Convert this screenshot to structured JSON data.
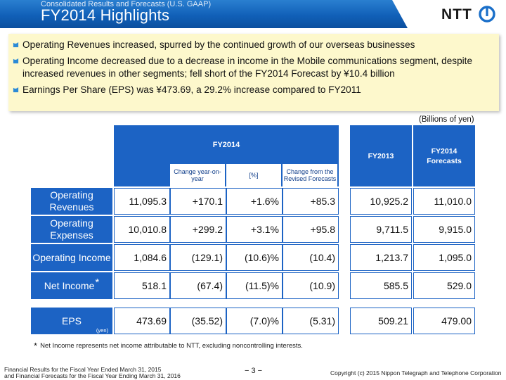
{
  "header": {
    "subtitle": "Consolidated Results and Forecasts (U.S. GAAP)",
    "title": "FY2014 Highlights",
    "logo_text": "NTT"
  },
  "bullets": [
    "Operating Revenues increased, spurred by the continued growth of our overseas businesses",
    "Operating Income decreased due to a decrease in income in the Mobile communications segment, despite increased revenues in other segments; fell short of the FY2014 Forecast by ¥10.4 billion",
    "Earnings Per Share (EPS) was ¥473.69, a 29.2% increase compared to FY2011"
  ],
  "unit_note": "(Billions of yen)",
  "table": {
    "group_header": "FY2014",
    "sub_headers": [
      "Change year-on-year",
      "[%]",
      "Change from the Revised Forecasts"
    ],
    "fy2013_header": "FY2013",
    "forecast_header": "FY2014 Forecasts",
    "rows": [
      {
        "label": "Operating Revenues",
        "values": [
          "11,095.3",
          "+170.1",
          "+1.6%",
          "+85.3",
          "10,925.2",
          "11,010.0"
        ]
      },
      {
        "label": "Operating Expenses",
        "values": [
          "10,010.8",
          "+299.2",
          "+3.1%",
          "+95.8",
          "9,711.5",
          "9,915.0"
        ]
      },
      {
        "label": "Operating Income",
        "values": [
          "1,084.6",
          "(129.1)",
          "(10.6)%",
          "(10.4)",
          "1,213.7",
          "1,095.0"
        ]
      },
      {
        "label": "Net Income",
        "label_mark": "*",
        "values": [
          "518.1",
          "(67.4)",
          "(11.5)%",
          "(10.9)",
          "585.5",
          "529.0"
        ]
      }
    ],
    "eps": {
      "label": "EPS",
      "unit": "(yen)",
      "values": [
        "473.69",
        "(35.52)",
        "(7.0)%",
        "(5.31)",
        "509.21",
        "479.00"
      ]
    }
  },
  "footnote": {
    "mark": "*",
    "text": "Net Income represents net income attributable to NTT, excluding noncontrolling interests."
  },
  "footer": {
    "left_line1": "Financial Results for the Fiscal Year Ended March 31, 2015",
    "left_line2": "and Financial Forecasts for the Fiscal Year Ending March 31, 2016",
    "page": "− 3 −",
    "copyright": "Copyright (c) 2015 Nippon Telegraph and Telephone Corporation"
  },
  "colors": {
    "accent_blue": "#1c63c4",
    "bullet_box": "#fdf8cc",
    "bullet_icon": "#2b8ad6"
  }
}
